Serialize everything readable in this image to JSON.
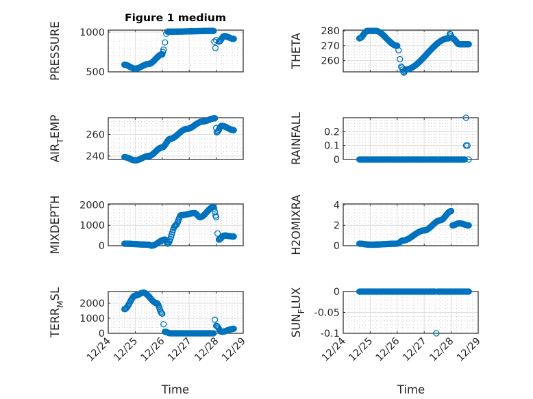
{
  "figure_title": "Figure 1 medium",
  "xlabel": "Time",
  "marker_color": "#0072BD",
  "xticks": [
    "12/24",
    "12/25",
    "12/26",
    "12/27",
    "12/28",
    "12/29"
  ],
  "chart_data": [
    {
      "type": "scatter",
      "ylabel_parts": [
        "PRESSURE",
        "",
        ""
      ],
      "ylim": [
        500,
        1025
      ],
      "yticks": [
        500,
        1000
      ],
      "yticklabels": [
        "500",
        "1000"
      ],
      "xlim_days": [
        0,
        5
      ],
      "x": [
        0.6,
        1.0,
        1.5,
        2.0,
        2.05,
        2.1,
        2.15,
        2.2,
        3.9,
        3.93,
        3.97,
        4.0,
        4.1,
        4.3,
        4.65
      ],
      "y": [
        590,
        540,
        600,
        720,
        780,
        870,
        980,
        1005,
        1015,
        880,
        800,
        900,
        880,
        950,
        915
      ],
      "gap_after": [
        4,
        5,
        6,
        9,
        10,
        11
      ]
    },
    {
      "type": "scatter",
      "ylabel_parts": [
        "THETA",
        "",
        ""
      ],
      "ylim": [
        252.5,
        280.5
      ],
      "yticks": [
        260,
        270,
        280
      ],
      "yticklabels": [
        "260",
        "270",
        "280"
      ],
      "xlim_days": [
        0,
        5
      ],
      "x": [
        0.6,
        0.9,
        1.2,
        2.0,
        2.05,
        2.1,
        2.15,
        2.25,
        2.3,
        3.9,
        3.95,
        4.05,
        4.3,
        4.65
      ],
      "y": [
        275,
        280,
        280,
        270,
        267,
        261,
        256,
        252,
        254,
        275,
        278,
        275,
        271,
        271
      ],
      "gap_after": [
        3,
        4,
        5,
        9
      ]
    },
    {
      "type": "scatter",
      "ylabel_parts": [
        "AIR",
        "T",
        "EMP"
      ],
      "ylim": [
        236.8,
        275.5
      ],
      "yticks": [
        240,
        260
      ],
      "yticklabels": [
        "240",
        "260"
      ],
      "xlim_days": [
        0,
        5
      ],
      "x": [
        0.6,
        1.0,
        1.5,
        2.0,
        2.3,
        2.9,
        3.5,
        3.95,
        4.0,
        4.02,
        4.2,
        4.65
      ],
      "y": [
        239,
        236,
        240,
        248,
        256,
        265,
        272,
        275,
        266,
        262,
        268,
        264
      ],
      "gap_after": [
        7,
        8
      ]
    },
    {
      "type": "scatter",
      "ylabel_parts": [
        "RAINFALL",
        "",
        ""
      ],
      "ylim": [
        0,
        0.3
      ],
      "yticks": [
        0,
        0.1,
        0.2
      ],
      "yticklabels": [
        "0",
        "0.1",
        "0.2"
      ],
      "xlim_days": [
        0,
        5
      ],
      "x": [
        0.6,
        4.5,
        4.55,
        4.55,
        4.6,
        4.65
      ],
      "y": [
        0,
        0,
        0.3,
        0.1,
        0.1,
        0
      ],
      "gap_after": [
        1,
        2,
        3,
        4
      ]
    },
    {
      "type": "scatter",
      "ylabel_parts": [
        "MIXDEPTH",
        "",
        ""
      ],
      "ylim": [
        0,
        2050
      ],
      "yticks": [
        0,
        1000,
        2000
      ],
      "yticklabels": [
        "0",
        "1000",
        "2000"
      ],
      "xlim_days": [
        0,
        5
      ],
      "x": [
        0.6,
        1.5,
        1.6,
        2.1,
        2.2,
        2.5,
        2.7,
        3.2,
        3.4,
        3.9,
        4.0,
        4.05,
        4.1,
        4.3,
        4.65
      ],
      "y": [
        100,
        50,
        0,
        300,
        100,
        1000,
        1500,
        1600,
        1400,
        1900,
        1400,
        600,
        300,
        500,
        450
      ],
      "gap_after": [
        10,
        11
      ]
    },
    {
      "type": "scatter",
      "ylabel_parts": [
        "H2OMIXRA",
        "",
        ""
      ],
      "ylim": [
        0,
        4.1
      ],
      "yticks": [
        0,
        2,
        4
      ],
      "yticklabels": [
        "0",
        "2",
        "4"
      ],
      "xlim_days": [
        0,
        5
      ],
      "x": [
        0.6,
        1.0,
        2.0,
        2.2,
        3.0,
        3.6,
        4.0,
        4.05,
        4.3,
        4.65
      ],
      "y": [
        0.2,
        0.1,
        0.2,
        0.5,
        1.5,
        2.5,
        3.4,
        2.0,
        2.2,
        2.0
      ],
      "gap_after": [
        6
      ]
    },
    {
      "type": "scatter",
      "ylabel_parts": [
        "TERR",
        "M",
        "SL"
      ],
      "ylim": [
        0,
        2770
      ],
      "yticks": [
        0,
        1000,
        2000
      ],
      "yticklabels": [
        "0",
        "1000",
        "2000"
      ],
      "xlim_days": [
        0,
        5
      ],
      "x": [
        0.6,
        1.0,
        1.3,
        1.8,
        2.0,
        2.05,
        2.1,
        2.3,
        3.9,
        3.95,
        4.0,
        4.2,
        4.65
      ],
      "y": [
        1600,
        2500,
        2700,
        2000,
        1300,
        600,
        100,
        0,
        0,
        900,
        500,
        100,
        300
      ],
      "gap_after": [
        4,
        5,
        8,
        9
      ]
    },
    {
      "type": "scatter",
      "ylabel_parts": [
        "SUN",
        "F",
        "LUX"
      ],
      "ylim": [
        -0.1,
        0
      ],
      "yticks": [
        -0.1,
        -0.05,
        0
      ],
      "yticklabels": [
        "-0.1",
        "-0.05",
        "0"
      ],
      "xlim_days": [
        0,
        5
      ],
      "x": [
        0.6,
        3.4,
        3.45,
        3.5,
        4.65
      ],
      "y": [
        0,
        0,
        -0.1,
        0,
        0
      ],
      "gap_after": [
        1,
        2
      ]
    }
  ]
}
